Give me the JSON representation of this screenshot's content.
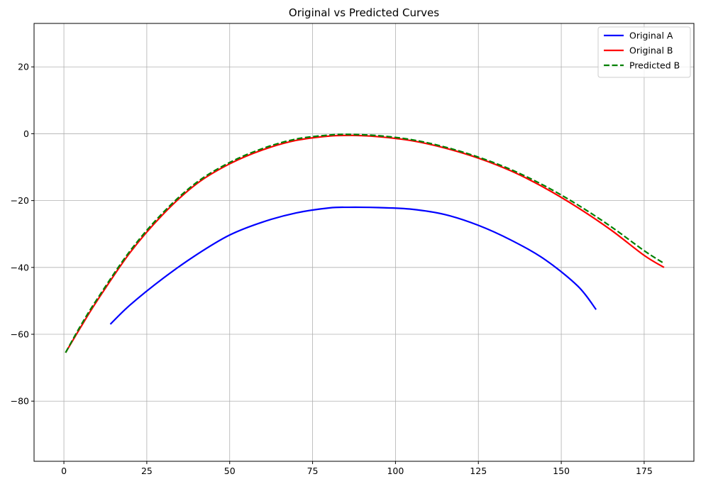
{
  "chart_data": {
    "type": "line",
    "title": "Original vs Predicted Curves",
    "xlabel": "",
    "ylabel": "",
    "xlim": [
      -9,
      190
    ],
    "ylim": [
      -98,
      33
    ],
    "xticks": [
      0,
      25,
      50,
      75,
      100,
      125,
      150,
      175
    ],
    "yticks": [
      20,
      0,
      -20,
      -40,
      -60,
      -80
    ],
    "xtick_labels": [
      "0",
      "25",
      "50",
      "75",
      "100",
      "125",
      "150",
      "175"
    ],
    "ytick_labels": [
      "20",
      "0",
      "−20",
      "−40",
      "−60",
      "−80"
    ],
    "grid": true,
    "legend_position": "top-right",
    "series": [
      {
        "name": "Original A",
        "color": "#0000ff",
        "style": "solid",
        "x": [
          14,
          20,
          30,
          40,
          50,
          60,
          70,
          80,
          86,
          95,
          105,
          115,
          125,
          135,
          145,
          155,
          160.5
        ],
        "y": [
          -57,
          -51.2,
          -43.2,
          -36.2,
          -30.3,
          -26.4,
          -23.7,
          -22.2,
          -22,
          -22.1,
          -22.6,
          -24.2,
          -27.4,
          -31.9,
          -37.6,
          -45.6,
          -52.6
        ]
      },
      {
        "name": "Original B",
        "color": "#ff0000",
        "style": "solid",
        "x": [
          0.5,
          5,
          10,
          20,
          30,
          40,
          50,
          60,
          70,
          80,
          87,
          95,
          105,
          115,
          125,
          135,
          145,
          155,
          165,
          175,
          181
        ],
        "y": [
          -65.5,
          -58,
          -50,
          -35.5,
          -24,
          -15,
          -9,
          -4.8,
          -2,
          -0.7,
          -0.5,
          -0.9,
          -2.1,
          -4.3,
          -7.3,
          -11.2,
          -16.2,
          -22.1,
          -28.8,
          -36.4,
          -40
        ]
      },
      {
        "name": "Predicted B",
        "color": "#008000",
        "style": "dashed",
        "x": [
          0.5,
          5,
          10,
          20,
          30,
          40,
          50,
          60,
          70,
          80,
          86,
          95,
          105,
          115,
          125,
          135,
          145,
          155,
          165,
          175,
          181
        ],
        "y": [
          -65.5,
          -57.5,
          -49.5,
          -35,
          -23.5,
          -14.6,
          -8.6,
          -4.4,
          -1.6,
          -0.4,
          -0.2,
          -0.6,
          -1.8,
          -4,
          -7,
          -10.8,
          -15.6,
          -21.3,
          -27.8,
          -35,
          -38.8
        ]
      }
    ]
  }
}
